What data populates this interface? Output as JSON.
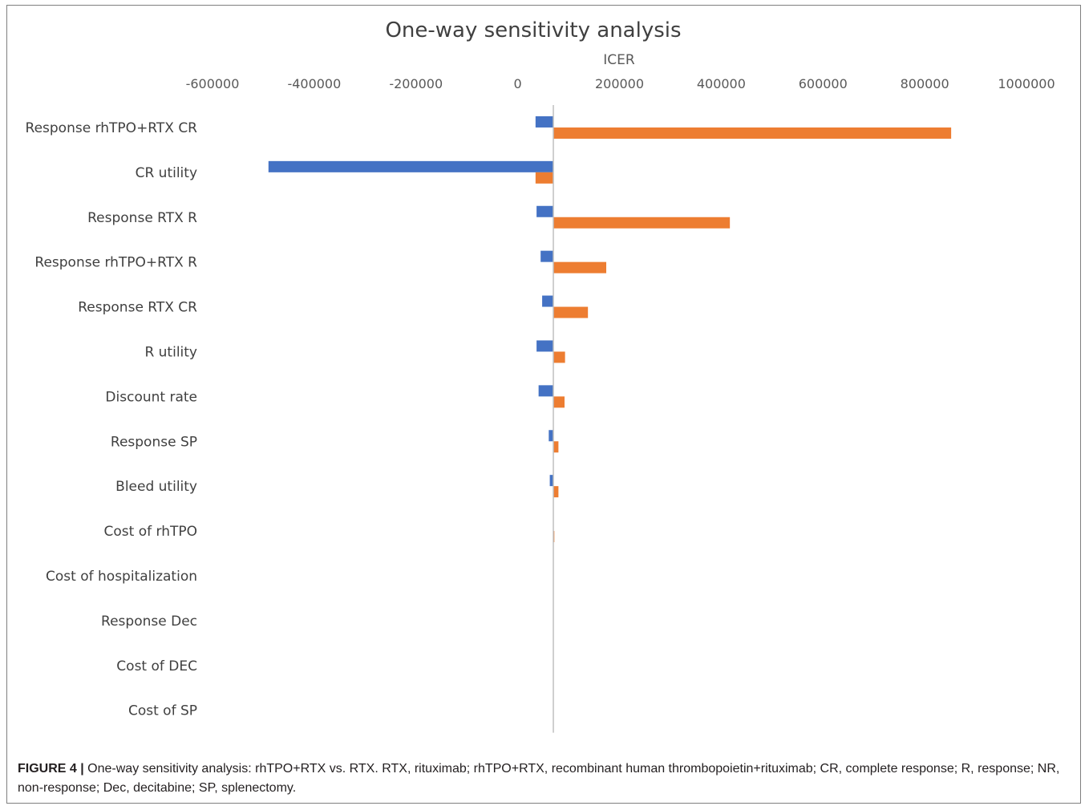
{
  "chart_data": {
    "type": "bar",
    "orientation": "horizontal",
    "title": "One-way sensitivity analysis",
    "xlabel": "ICER",
    "ylabel": "",
    "xlim": [
      -600000,
      1000000
    ],
    "xticks": [
      -600000,
      -400000,
      -200000,
      0,
      200000,
      400000,
      600000,
      800000,
      1000000
    ],
    "xtick_labels": [
      "-600000",
      "-400000",
      "-200000",
      "0",
      "200000",
      "400000",
      "600000",
      "800000",
      "1000000"
    ],
    "axis_position": "top",
    "base": 70000,
    "grid": false,
    "legend": "none",
    "categories": [
      "Response rhTPO+RTX CR",
      "CR utility",
      "Response RTX R",
      "Response rhTPO+RTX R",
      "Response RTX CR",
      "R utility",
      "Discount rate",
      "Response SP",
      "Bleed utility",
      "Cost of rhTPO",
      "Cost of hospitalization",
      "Response Dec",
      "Cost of DEC",
      "Cost of SP"
    ],
    "series": [
      {
        "color": "#4472c4",
        "values": [
          35000,
          -490000,
          37000,
          45000,
          48000,
          37000,
          41000,
          61000,
          63000,
          69500,
          70000,
          70000,
          70000,
          70000
        ]
      },
      {
        "color": "#ed7d31",
        "values": [
          852000,
          35000,
          417000,
          174000,
          138000,
          93000,
          92000,
          80000,
          80000,
          72000,
          70000,
          70000,
          70000,
          70000
        ]
      }
    ]
  },
  "caption": {
    "label": "FIGURE 4 |",
    "text": " One-way sensitivity analysis: rhTPO+RTX vs. RTX. RTX, rituximab; rhTPO+RTX, recombinant human thrombopoietin+rituximab; CR, complete response; R, response; NR, non-response; Dec, decitabine; SP, splenectomy."
  }
}
